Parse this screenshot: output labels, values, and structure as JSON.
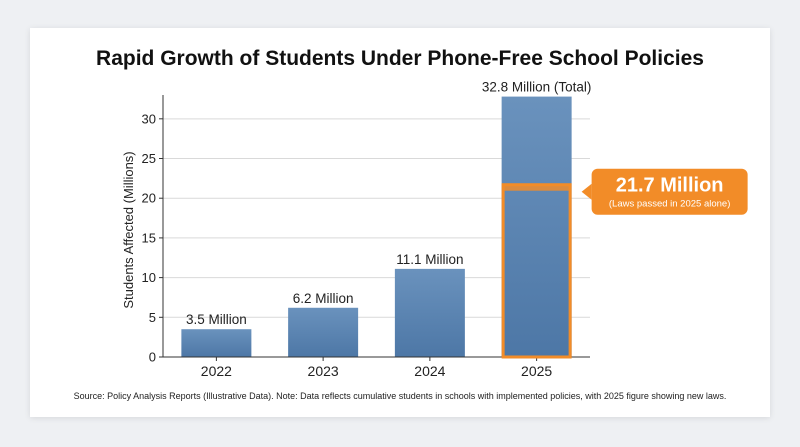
{
  "chart_data": {
    "type": "bar",
    "title": "Rapid Growth of Students Under Phone-Free School Policies",
    "ylabel": "Students Affected (Millions)",
    "xlabel": "",
    "categories": [
      "2022",
      "2023",
      "2024",
      "2025"
    ],
    "values": [
      3.5,
      6.2,
      11.1,
      32.8
    ],
    "bar_labels": [
      "3.5 Million",
      "6.2 Million",
      "11.1 Million",
      "32.8 Million (Total)"
    ],
    "highlight": {
      "category": "2025",
      "value": 21.7,
      "title": "21.7 Million",
      "subtitle": "(Laws passed in 2025 alone)"
    },
    "ylim": [
      0,
      33
    ],
    "yticks": [
      0,
      5,
      10,
      15,
      20,
      25,
      30
    ],
    "grid": true,
    "colors": {
      "bar": "#5b84b1",
      "highlight": "#f28c28"
    }
  },
  "source": "Source: Policy Analysis Reports (Illustrative Data). Note: Data reflects cumulative students in schools with implemented policies, with 2025 figure showing new laws."
}
